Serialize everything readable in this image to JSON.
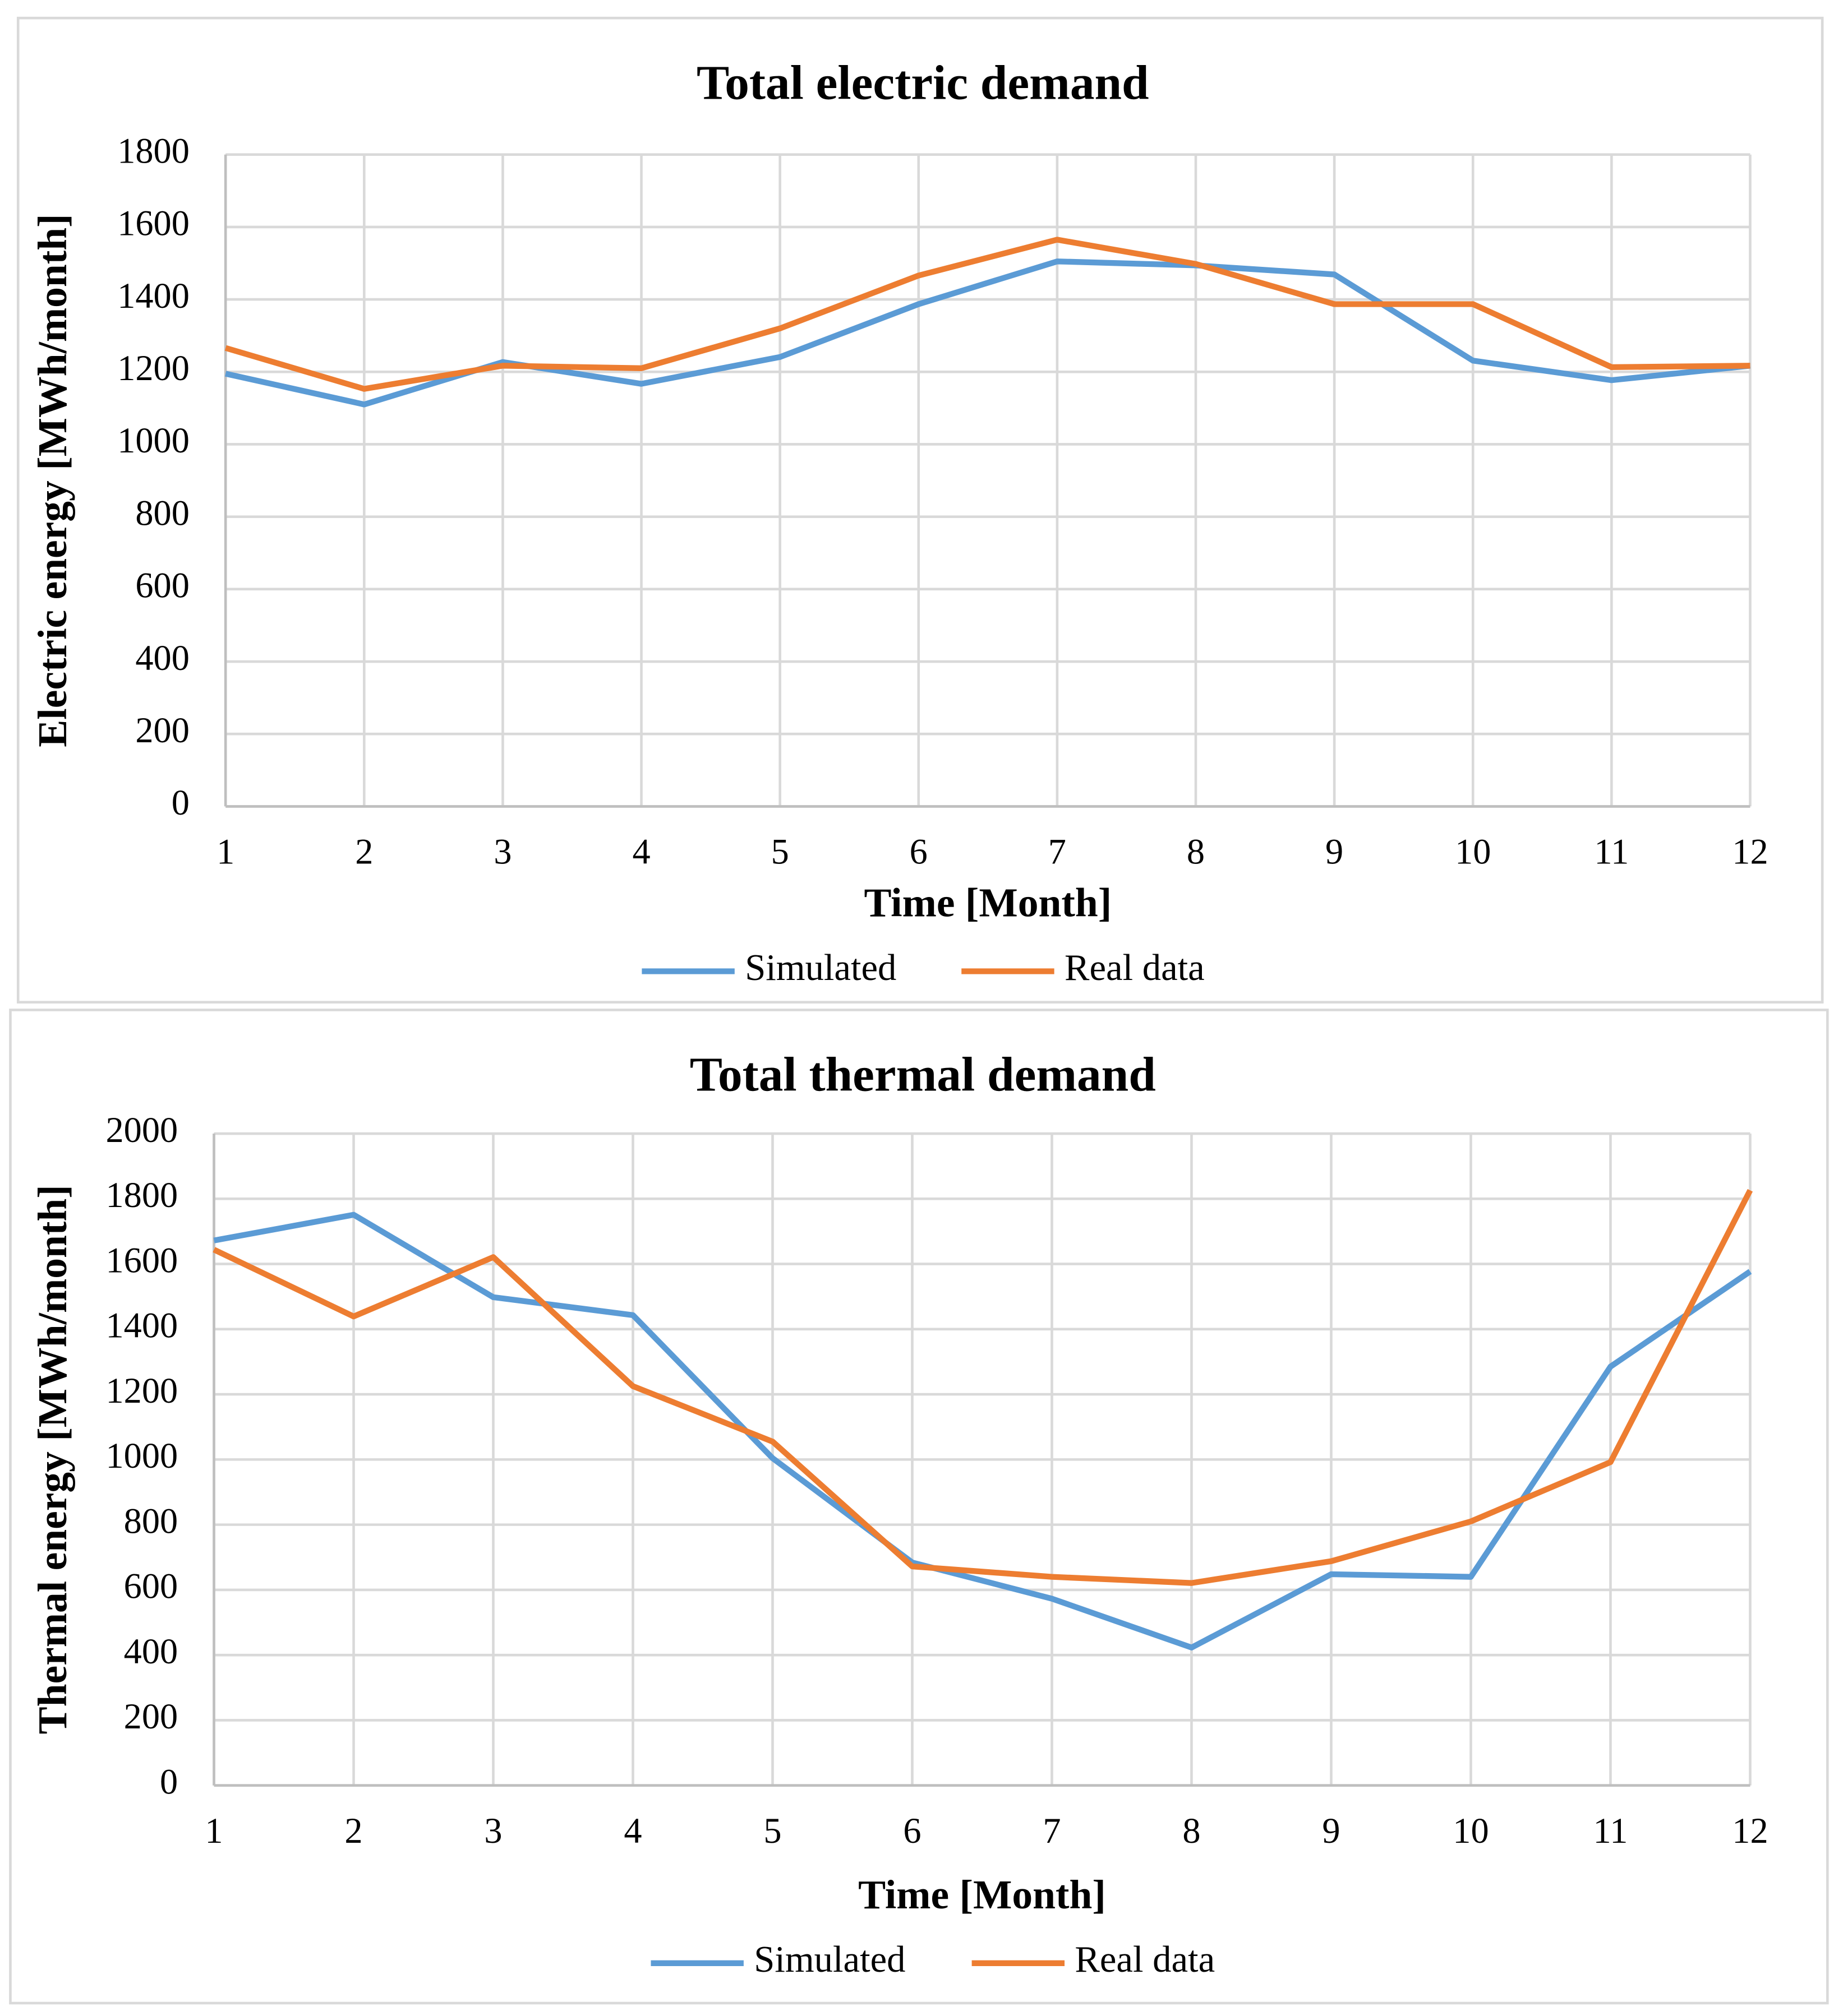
{
  "chart_data": [
    {
      "type": "line",
      "title": "Total electric demand",
      "x_label": "Time [Month]",
      "y_label": "Electric energy [MWh/month]",
      "x": [
        1,
        2,
        3,
        4,
        5,
        6,
        7,
        8,
        9,
        10,
        11,
        12
      ],
      "xlim": [
        1,
        12
      ],
      "xticks": [
        1,
        2,
        3,
        4,
        5,
        6,
        7,
        8,
        9,
        10,
        11,
        12
      ],
      "ylim": [
        0,
        1800
      ],
      "yticks": [
        0,
        200,
        400,
        600,
        800,
        1000,
        1200,
        1400,
        1600,
        1800
      ],
      "grid": true,
      "legend": "bottom",
      "series": [
        {
          "name": "Simulated",
          "color": "#5b9bd5",
          "values": [
            1195,
            1110,
            1227,
            1167,
            1241,
            1387,
            1505,
            1494,
            1469,
            1231,
            1177,
            1217
          ]
        },
        {
          "name": "Real data",
          "color": "#ed7d31",
          "values": [
            1266,
            1153,
            1217,
            1210,
            1320,
            1466,
            1565,
            1498,
            1387,
            1387,
            1213,
            1217
          ]
        }
      ]
    },
    {
      "type": "line",
      "title": "Total thermal demand",
      "x_label": "Time [Month]",
      "y_label": "Thermal energy [MWh/month]",
      "x": [
        1,
        2,
        3,
        4,
        5,
        6,
        7,
        8,
        9,
        10,
        11,
        12
      ],
      "xlim": [
        1,
        12
      ],
      "xticks": [
        1,
        2,
        3,
        4,
        5,
        6,
        7,
        8,
        9,
        10,
        11,
        12
      ],
      "ylim": [
        0,
        2000
      ],
      "yticks": [
        0,
        200,
        400,
        600,
        800,
        1000,
        1200,
        1400,
        1600,
        1800,
        2000
      ],
      "grid": true,
      "legend": "bottom",
      "series": [
        {
          "name": "Simulated",
          "color": "#5b9bd5",
          "values": [
            1672,
            1751,
            1498,
            1443,
            1004,
            684,
            573,
            423,
            648,
            640,
            1285,
            1577
          ]
        },
        {
          "name": "Real data",
          "color": "#ed7d31",
          "values": [
            1644,
            1439,
            1621,
            1225,
            1055,
            672,
            640,
            621,
            688,
            810,
            992,
            1826
          ]
        }
      ]
    }
  ]
}
